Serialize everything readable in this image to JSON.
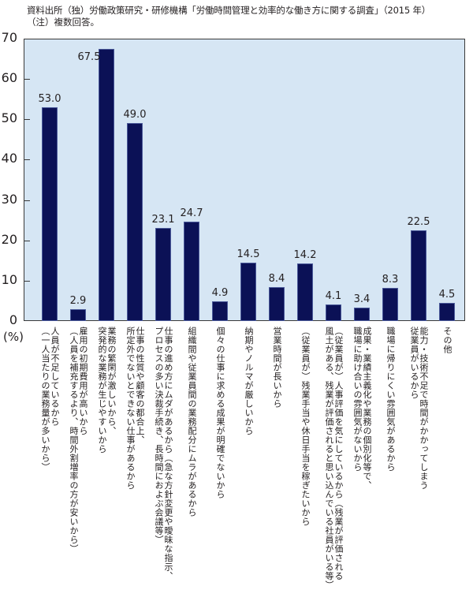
{
  "header": {
    "source": "資料出所（独）労働政策研究・研修機構「労働時間管理と効率的な働き方に関する調査」（2015 年）",
    "note": "（注）複数回答。"
  },
  "axis": {
    "unit": "(%)",
    "ticks": [
      "0",
      "10",
      "20",
      "30",
      "40",
      "50",
      "60",
      "70"
    ]
  },
  "chart_data": {
    "type": "bar",
    "title": "",
    "xlabel": "",
    "ylabel": "(%)",
    "ylim": [
      0,
      70
    ],
    "grid": false,
    "legend": null,
    "colors": {
      "bar": "#0b1156",
      "plot_background": "#d6e6f4",
      "border": "#3a3a3a"
    },
    "categories": [
      "人員が不足しているから\n（一人当たりの業務量が多いから）",
      "雇用の初期費用が高いから\n（人員を補充するより、時間外割増率の方が安いから）",
      "業務の繁閑が激しいから、\n突発的な業務が生じやすいから",
      "仕事の性質や顧客の都合上、\n所定外でないとできない仕事があるから",
      "仕事の進め方にムダがあるから（急な方針変更や曖昧な指示、\nプロセスの多い決裁手続き、長時間におよぶ会議等）",
      "組織間や従業員間の業務配分にムラがあるから",
      "個々の仕事に求める成果が明確でないから",
      "納期やノルマが厳しいから",
      "営業時間が長いから",
      "（従業員が）残業手当や休日手当を稼ぎたいから",
      "（従業員が）人事評価を気にしているから（残業が評価される\n風土がある、残業が評価されると思い込んでいる社員がいる等）",
      "成果・業績主義化や業務の個別化等で、\n職場に助け合いの雰囲気がないから",
      "職場に帰りにくい雰囲気があるから",
      "能力・技術不足で時間がかかってしまう\n従業員がいるから",
      "その他"
    ],
    "values": [
      53.0,
      2.9,
      67.5,
      49.0,
      23.1,
      24.7,
      4.9,
      14.5,
      8.4,
      14.2,
      4.1,
      3.4,
      8.3,
      22.5,
      4.5
    ],
    "value_labels": [
      "53.0",
      "2.9",
      "67.5",
      "49.0",
      "23.1",
      "24.7",
      "4.9",
      "14.5",
      "8.4",
      "14.2",
      "4.1",
      "3.4",
      "8.3",
      "22.5",
      "4.5"
    ]
  }
}
